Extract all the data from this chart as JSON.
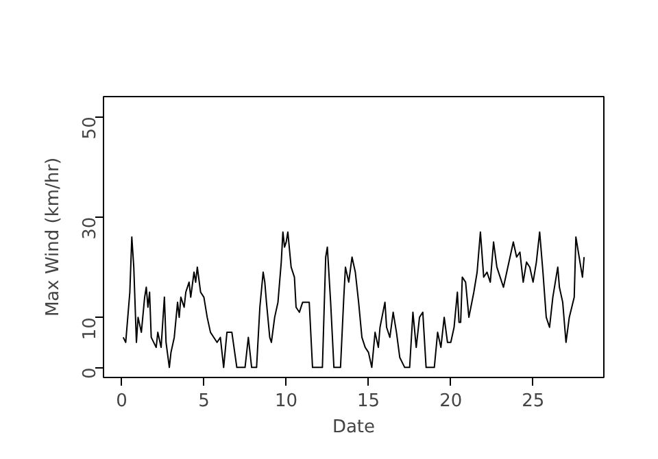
{
  "chart_data": {
    "type": "line",
    "xlabel": "Date",
    "ylabel": "Max Wind (km/hr)",
    "xlim": [
      -1.1,
      29.3
    ],
    "ylim": [
      -2,
      54
    ],
    "xticks": [
      0,
      5,
      10,
      15,
      20,
      25
    ],
    "yticks": [
      0,
      10,
      30,
      50
    ],
    "grid": false,
    "marker": "none",
    "line_style": "solid",
    "series": [
      {
        "color": "#000000",
        "x": [
          0.1,
          0.25,
          0.4,
          0.5,
          0.62,
          0.74,
          0.9,
          1.0,
          1.2,
          1.4,
          1.5,
          1.6,
          1.7,
          1.8,
          2.1,
          2.2,
          2.4,
          2.6,
          2.7,
          2.9,
          3.0,
          3.2,
          3.4,
          3.5,
          3.6,
          3.8,
          3.9,
          4.1,
          4.2,
          4.4,
          4.5,
          4.6,
          4.8,
          5.0,
          5.2,
          5.4,
          5.6,
          5.8,
          6.0,
          6.1,
          6.2,
          6.4,
          6.7,
          7.0,
          7.5,
          7.7,
          7.9,
          8.2,
          8.4,
          8.6,
          8.7,
          8.8,
          9.0,
          9.1,
          9.3,
          9.5,
          9.7,
          9.8,
          9.9,
          10.0,
          10.1,
          10.3,
          10.5,
          10.6,
          10.8,
          11.0,
          11.2,
          11.4,
          11.6,
          11.8,
          12.2,
          12.4,
          12.5,
          12.7,
          12.9,
          13.3,
          13.5,
          13.6,
          13.8,
          14.0,
          14.2,
          14.4,
          14.6,
          14.8,
          15.0,
          15.2,
          15.4,
          15.6,
          15.7,
          16.0,
          16.1,
          16.3,
          16.5,
          16.7,
          16.9,
          17.2,
          17.5,
          17.7,
          17.9,
          18.1,
          18.3,
          18.5,
          19.0,
          19.2,
          19.4,
          19.6,
          19.8,
          20.0,
          20.2,
          20.4,
          20.5,
          20.6,
          20.7,
          20.9,
          21.1,
          21.4,
          21.6,
          21.8,
          22.0,
          22.2,
          22.4,
          22.6,
          22.8,
          23.0,
          23.2,
          23.4,
          23.6,
          23.8,
          24.0,
          24.2,
          24.4,
          24.6,
          24.8,
          25.0,
          25.2,
          25.4,
          25.6,
          25.8,
          26.0,
          26.2,
          26.5,
          26.6,
          26.8,
          27.0,
          27.2,
          27.5,
          27.6,
          27.8,
          28.0,
          28.1
        ],
        "values": [
          6,
          5,
          11,
          15,
          26,
          20,
          5,
          10,
          7,
          14,
          16,
          12,
          15,
          6,
          4,
          7,
          4,
          14,
          5,
          0,
          3,
          6,
          13,
          10,
          14,
          12,
          15,
          17,
          14,
          19,
          17,
          20,
          15,
          14,
          10,
          7,
          6,
          5,
          6,
          3,
          0,
          7,
          7,
          0,
          0,
          6,
          0,
          0,
          12,
          19,
          17,
          13,
          6,
          5,
          10,
          13,
          21,
          27,
          24,
          25,
          27,
          20,
          18,
          12,
          11,
          13,
          13,
          13,
          0,
          0,
          0,
          22,
          24,
          13,
          0,
          0,
          14,
          20,
          17,
          22,
          19,
          13,
          6,
          4,
          3,
          0,
          7,
          4,
          8,
          13,
          8,
          6,
          11,
          7,
          2,
          0,
          0,
          11,
          4,
          10,
          11,
          0,
          0,
          7,
          4,
          10,
          5,
          5,
          8,
          15,
          9,
          9,
          18,
          17,
          10,
          15,
          19,
          27,
          18,
          19,
          17,
          25,
          20,
          18,
          16,
          19,
          22,
          25,
          22,
          23,
          17,
          21,
          20,
          17,
          21,
          27,
          19,
          10,
          8,
          14,
          20,
          16,
          13,
          5,
          10,
          14,
          26,
          22,
          18,
          22
        ]
      }
    ]
  }
}
